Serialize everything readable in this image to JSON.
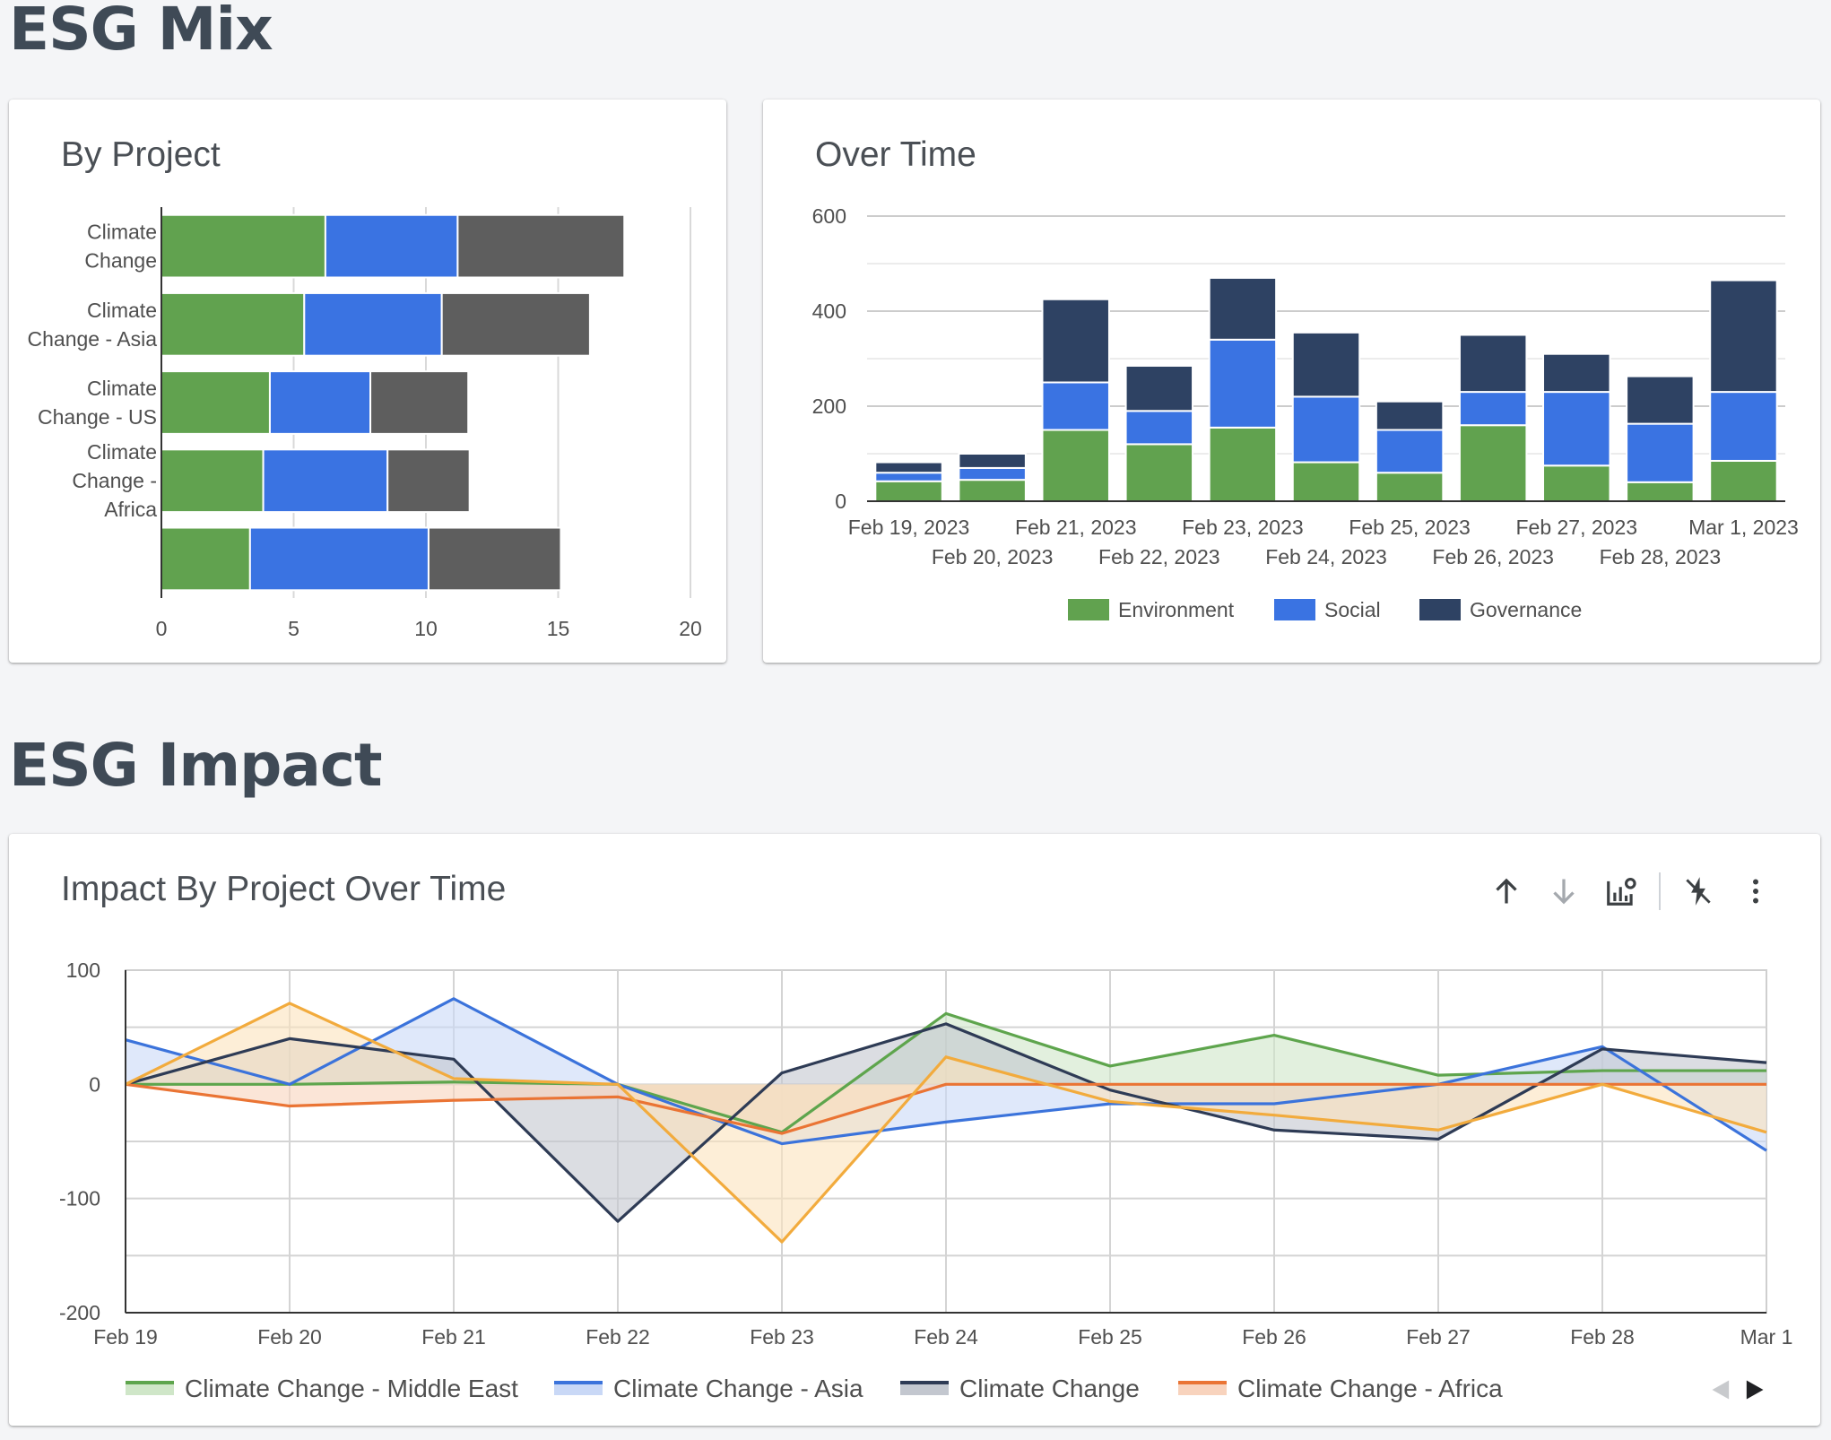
{
  "sections": {
    "mix_title": "ESG Mix",
    "impact_title": "ESG Impact"
  },
  "cards": {
    "by_project": {
      "title": "By Project"
    },
    "over_time": {
      "title": "Over Time"
    },
    "impact": {
      "title": "Impact By Project Over Time"
    }
  },
  "toolbar": {
    "icons": [
      "arrow-up-icon",
      "arrow-down-icon",
      "chart-settings-icon",
      "magic-bolt-icon",
      "more-vertical-icon"
    ]
  },
  "colors": {
    "environment": "#61a24f",
    "social": "#3a73e2",
    "governance_mix": "#5e5e5e",
    "governance_time": "#2e4263"
  },
  "chart_data": [
    {
      "id": "by_project",
      "type": "bar",
      "orientation": "horizontal",
      "stacked": true,
      "categories": [
        [
          "Climate",
          "Change"
        ],
        [
          "Climate",
          "Change - Asia"
        ],
        [
          "Climate",
          "Change - US"
        ],
        [
          "Climate",
          "Change -",
          "Africa"
        ],
        []
      ],
      "series": [
        {
          "key": "Environment",
          "values": [
            6.2,
            5.4,
            4.1,
            3.85,
            3.35
          ],
          "color": "#61a24f"
        },
        {
          "key": "Social",
          "values": [
            5.0,
            5.2,
            3.8,
            4.7,
            6.75
          ],
          "color": "#3a73e2"
        },
        {
          "key": "Governance",
          "values": [
            6.3,
            5.6,
            3.7,
            3.1,
            5.0
          ],
          "color": "#5e5e5e"
        }
      ],
      "xlim": [
        0,
        20
      ],
      "xticks": [
        "0",
        "5",
        "10",
        "15",
        "20"
      ],
      "grid": true
    },
    {
      "id": "over_time",
      "type": "bar",
      "stacked": true,
      "categories": [
        "Feb 19, 2023",
        "Feb 20, 2023",
        "Feb 21, 2023",
        "Feb 22, 2023",
        "Feb 23, 2023",
        "Feb 24, 2023",
        "Feb 25, 2023",
        "Feb 26, 2023",
        "Feb 27, 2023",
        "Feb 28, 2023",
        "Mar 1, 2023"
      ],
      "series": [
        {
          "name": "Environment",
          "values": [
            42,
            45,
            150,
            120,
            155,
            82,
            60,
            160,
            75,
            40,
            85
          ],
          "color": "#61a24f"
        },
        {
          "name": "Social",
          "values": [
            18,
            25,
            100,
            70,
            185,
            138,
            90,
            70,
            155,
            123,
            145
          ],
          "color": "#3a73e2"
        },
        {
          "name": "Governance",
          "values": [
            22,
            30,
            175,
            95,
            130,
            135,
            60,
            120,
            80,
            100,
            235
          ],
          "color": "#2e4263"
        }
      ],
      "ylim": [
        0,
        600
      ],
      "yticks": [
        "0",
        "200",
        "400",
        "600"
      ],
      "legend": "bottom",
      "grid": true
    },
    {
      "id": "impact",
      "type": "area",
      "x": [
        "Feb 19",
        "Feb 20",
        "Feb 21",
        "Feb 22",
        "Feb 23",
        "Feb 24",
        "Feb 25",
        "Feb 26",
        "Feb 27",
        "Feb 28",
        "Mar 1"
      ],
      "series": [
        {
          "name": "Climate Change - Middle East",
          "values": [
            0,
            0,
            2,
            0,
            -42,
            62,
            16,
            43,
            8,
            12,
            12
          ],
          "color": "#5ea54d",
          "fill": "#cfe6c8"
        },
        {
          "name": "Climate Change - Asia",
          "values": [
            39,
            0,
            75,
            0,
            -52,
            -33,
            -17,
            -17,
            0,
            33,
            -58
          ],
          "color": "#3b73db",
          "fill": "#c9d8f6"
        },
        {
          "name": "Climate Change",
          "values": [
            0,
            40,
            22,
            -120,
            10,
            53,
            -5,
            -40,
            -48,
            31,
            19
          ],
          "color": "#2e3b55",
          "fill": "#c3c7cf"
        },
        {
          "name": "Climate Change - Africa",
          "values": [
            0,
            -19,
            -14,
            -11,
            -43,
            0,
            0,
            0,
            0,
            0,
            0
          ],
          "color": "#ea7434",
          "fill": "#f8d3bd"
        },
        {
          "name": "",
          "values": [
            0,
            71,
            5,
            0,
            -138,
            24,
            -15,
            -27,
            -40,
            0,
            -42
          ],
          "color": "#f2ab3d",
          "fill": "#fbe3bd"
        }
      ],
      "ylim": [
        -200,
        100
      ],
      "yticks": [
        "-200",
        "-100",
        "0",
        "100"
      ],
      "legend": "bottom",
      "grid": true
    }
  ]
}
